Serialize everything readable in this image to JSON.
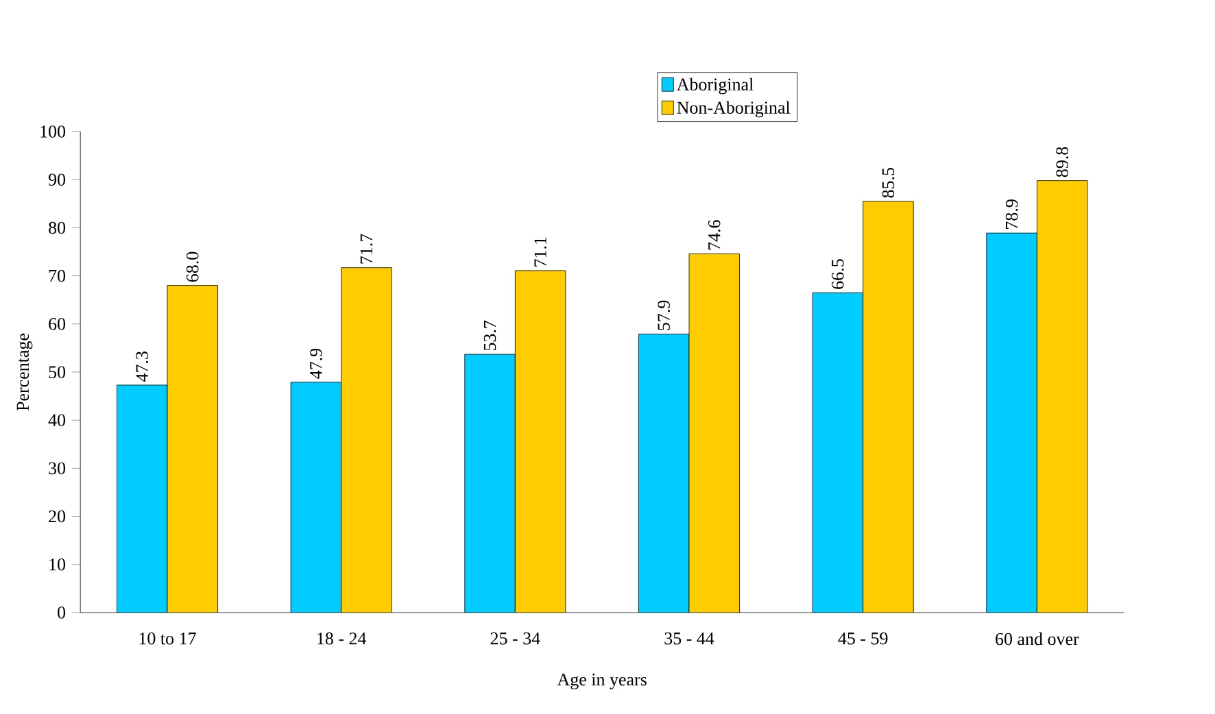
{
  "chart_data": {
    "type": "bar",
    "xlabel": "Age in years",
    "ylabel": "Percentage",
    "categories": [
      "10 to 17",
      "18 - 24",
      "25 - 34",
      "35 - 44",
      "45 - 59",
      "60 and over"
    ],
    "series": [
      {
        "name": "Aboriginal",
        "color": "#00ccff",
        "values": [
          47.3,
          47.9,
          53.7,
          57.9,
          66.5,
          78.9
        ],
        "value_labels": [
          "47.3",
          "47.9",
          "53.7",
          "57.9",
          "66.5",
          "78.9"
        ]
      },
      {
        "name": "Non-Aboriginal",
        "color": "#ffcc00",
        "values": [
          68.0,
          71.7,
          71.1,
          74.6,
          85.5,
          89.8
        ],
        "value_labels": [
          "68.0",
          "71.7",
          "71.1",
          "74.6",
          "85.5",
          "89.8"
        ]
      }
    ],
    "ylim": [
      0,
      100
    ],
    "yticks": [
      0,
      10,
      20,
      30,
      40,
      50,
      60,
      70,
      80,
      90,
      100
    ],
    "legend": "top",
    "grid": false
  }
}
